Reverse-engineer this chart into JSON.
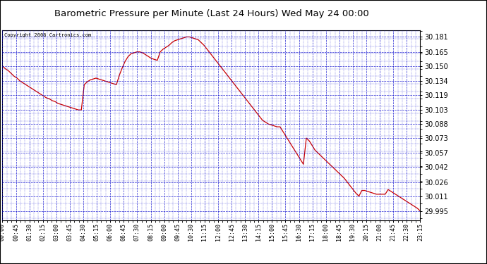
{
  "title": "Barometric Pressure per Minute (Last 24 Hours) Wed May 24 00:00",
  "copyright": "Copyright 2006 Cartronics.com",
  "plot_bg_color": "#ffffff",
  "fig_bg_color": "#ffffff",
  "line_color": "#cc0000",
  "grid_color": "#0000cc",
  "text_color": "#000000",
  "tick_label_color": "#000000",
  "y_ticks": [
    29.995,
    30.011,
    30.026,
    30.042,
    30.057,
    30.073,
    30.088,
    30.103,
    30.119,
    30.134,
    30.15,
    30.165,
    30.181
  ],
  "ylim": [
    29.985,
    30.188
  ],
  "x_tick_labels": [
    "00:00",
    "00:45",
    "01:30",
    "02:15",
    "03:00",
    "03:45",
    "04:30",
    "05:15",
    "06:00",
    "06:45",
    "07:30",
    "08:15",
    "09:00",
    "09:45",
    "10:30",
    "11:15",
    "12:00",
    "12:45",
    "13:30",
    "14:15",
    "15:00",
    "15:45",
    "16:30",
    "17:15",
    "18:00",
    "18:45",
    "19:30",
    "20:15",
    "21:00",
    "21:45",
    "22:30",
    "23:15"
  ],
  "data_y": [
    30.15,
    30.147,
    30.145,
    30.142,
    30.139,
    30.137,
    30.134,
    30.132,
    30.13,
    30.128,
    30.126,
    30.124,
    30.122,
    30.12,
    30.118,
    30.116,
    30.115,
    30.113,
    30.112,
    30.11,
    30.109,
    30.108,
    30.107,
    30.106,
    30.105,
    30.104,
    30.103,
    30.103,
    30.13,
    30.133,
    30.135,
    30.136,
    30.137,
    30.136,
    30.135,
    30.134,
    30.133,
    30.132,
    30.131,
    30.13,
    30.14,
    30.148,
    30.155,
    30.16,
    30.163,
    30.164,
    30.165,
    30.165,
    30.164,
    30.162,
    30.16,
    30.158,
    30.157,
    30.156,
    30.165,
    30.168,
    30.17,
    30.172,
    30.175,
    30.177,
    30.178,
    30.179,
    30.18,
    30.181,
    30.181,
    30.18,
    30.179,
    30.178,
    30.175,
    30.172,
    30.168,
    30.164,
    30.16,
    30.156,
    30.152,
    30.148,
    30.144,
    30.14,
    30.136,
    30.132,
    30.128,
    30.124,
    30.12,
    30.116,
    30.112,
    30.108,
    30.104,
    30.1,
    30.096,
    30.092,
    30.09,
    30.088,
    30.087,
    30.086,
    30.085,
    30.085,
    30.08,
    30.075,
    30.07,
    30.065,
    30.06,
    30.055,
    30.05,
    30.045,
    30.073,
    30.07,
    30.065,
    30.06,
    30.057,
    30.054,
    30.051,
    30.048,
    30.045,
    30.042,
    30.039,
    30.036,
    30.033,
    30.03,
    30.026,
    30.022,
    30.018,
    30.014,
    30.011,
    30.017,
    30.017,
    30.016,
    30.015,
    30.014,
    30.013,
    30.013,
    30.013,
    30.013,
    30.018,
    30.016,
    30.014,
    30.012,
    30.01,
    30.008,
    30.006,
    30.004,
    30.002,
    30.0,
    29.998,
    29.995
  ]
}
